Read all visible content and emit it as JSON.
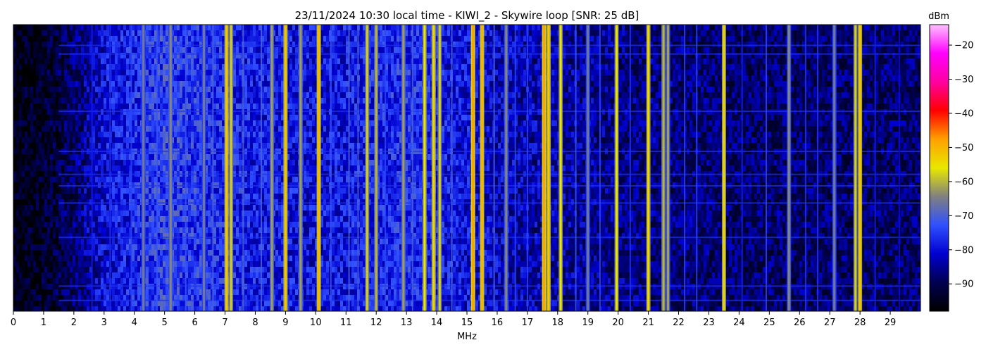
{
  "chart_data": {
    "type": "heatmap",
    "title": "23/11/2024 10:30 local time - KIWI_2 - Skywire loop [SNR: 25 dB]",
    "xlabel": "MHz",
    "ylabel": "",
    "xlim": [
      0,
      30
    ],
    "x_ticks": [
      0,
      1,
      2,
      3,
      4,
      5,
      6,
      7,
      8,
      9,
      10,
      11,
      12,
      13,
      14,
      15,
      16,
      17,
      18,
      19,
      20,
      21,
      22,
      23,
      24,
      25,
      26,
      27,
      28,
      29
    ],
    "x_tick_labels": [
      "0",
      "1",
      "2",
      "3",
      "4",
      "5",
      "6",
      "7",
      "8",
      "9",
      "10",
      "11",
      "12",
      "13",
      "14",
      "15",
      "16",
      "17",
      "18",
      "19",
      "20",
      "21",
      "22",
      "23",
      "24",
      "25",
      "26",
      "27",
      "28",
      "29"
    ],
    "colorbar": {
      "label": "dBm",
      "range": [
        -98,
        -14
      ],
      "ticks": [
        -20,
        -30,
        -40,
        -50,
        -60,
        -70,
        -80,
        -90
      ],
      "tick_labels": [
        "−20",
        "−30",
        "−40",
        "−50",
        "−60",
        "−70",
        "−80",
        "−90"
      ],
      "colors": [
        "#000000",
        "#000050",
        "#0000d0",
        "#3050ff",
        "#808080",
        "#e8e800",
        "#ffa000",
        "#ff0000",
        "#ff00a0",
        "#ff00ff",
        "#ffc0ff"
      ]
    },
    "noise_floor": [
      [
        0,
        -96
      ],
      [
        1,
        -94
      ],
      [
        2,
        -88
      ],
      [
        3,
        -80
      ],
      [
        5,
        -74
      ],
      [
        8,
        -78
      ],
      [
        10,
        -80
      ],
      [
        13,
        -76
      ],
      [
        16,
        -82
      ],
      [
        20,
        -86
      ],
      [
        24,
        -88
      ],
      [
        30,
        -88
      ]
    ],
    "strong_signals": [
      {
        "mhz": 4.3,
        "dbm": -66
      },
      {
        "mhz": 5.2,
        "dbm": -64
      },
      {
        "mhz": 6.3,
        "dbm": -66
      },
      {
        "mhz": 7.05,
        "dbm": -52
      },
      {
        "mhz": 7.2,
        "dbm": -58
      },
      {
        "mhz": 8.55,
        "dbm": -62
      },
      {
        "mhz": 9.0,
        "dbm": -52
      },
      {
        "mhz": 9.5,
        "dbm": -62
      },
      {
        "mhz": 10.1,
        "dbm": -50
      },
      {
        "mhz": 11.7,
        "dbm": -58
      },
      {
        "mhz": 12.0,
        "dbm": -60
      },
      {
        "mhz": 12.9,
        "dbm": -62
      },
      {
        "mhz": 13.6,
        "dbm": -56
      },
      {
        "mhz": 13.9,
        "dbm": -54
      },
      {
        "mhz": 14.1,
        "dbm": -58
      },
      {
        "mhz": 15.2,
        "dbm": -48
      },
      {
        "mhz": 15.5,
        "dbm": -50
      },
      {
        "mhz": 16.3,
        "dbm": -64
      },
      {
        "mhz": 17.55,
        "dbm": -48
      },
      {
        "mhz": 17.7,
        "dbm": -52
      },
      {
        "mhz": 18.1,
        "dbm": -56
      },
      {
        "mhz": 19.0,
        "dbm": -66
      },
      {
        "mhz": 19.95,
        "dbm": -56
      },
      {
        "mhz": 21.0,
        "dbm": -54
      },
      {
        "mhz": 21.5,
        "dbm": -60
      },
      {
        "mhz": 21.65,
        "dbm": -62
      },
      {
        "mhz": 23.5,
        "dbm": -54
      },
      {
        "mhz": 25.65,
        "dbm": -64
      },
      {
        "mhz": 27.15,
        "dbm": -66
      },
      {
        "mhz": 27.85,
        "dbm": -58
      },
      {
        "mhz": 28.0,
        "dbm": -52
      }
    ],
    "weak_signals": [
      {
        "mhz": 2.6,
        "dbm": -78
      },
      {
        "mhz": 3.2,
        "dbm": -76
      },
      {
        "mhz": 3.9,
        "dbm": -74
      },
      {
        "mhz": 4.75,
        "dbm": -72
      },
      {
        "mhz": 5.7,
        "dbm": -72
      },
      {
        "mhz": 6.6,
        "dbm": -70
      },
      {
        "mhz": 7.6,
        "dbm": -70
      },
      {
        "mhz": 8.2,
        "dbm": -70
      },
      {
        "mhz": 10.5,
        "dbm": -72
      },
      {
        "mhz": 11.1,
        "dbm": -70
      },
      {
        "mhz": 11.4,
        "dbm": -70
      },
      {
        "mhz": 12.3,
        "dbm": -74
      },
      {
        "mhz": 13.2,
        "dbm": -70
      },
      {
        "mhz": 14.5,
        "dbm": -70
      },
      {
        "mhz": 15.9,
        "dbm": -70
      },
      {
        "mhz": 16.6,
        "dbm": -74
      },
      {
        "mhz": 17.0,
        "dbm": -74
      },
      {
        "mhz": 18.6,
        "dbm": -72
      },
      {
        "mhz": 19.4,
        "dbm": -74
      },
      {
        "mhz": 20.4,
        "dbm": -76
      },
      {
        "mhz": 22.2,
        "dbm": -74
      },
      {
        "mhz": 22.6,
        "dbm": -74
      },
      {
        "mhz": 24.1,
        "dbm": -78
      },
      {
        "mhz": 24.9,
        "dbm": -74
      },
      {
        "mhz": 26.2,
        "dbm": -76
      },
      {
        "mhz": 26.6,
        "dbm": -76
      },
      {
        "mhz": 28.5,
        "dbm": -78
      },
      {
        "mhz": 29.3,
        "dbm": -80
      }
    ]
  }
}
